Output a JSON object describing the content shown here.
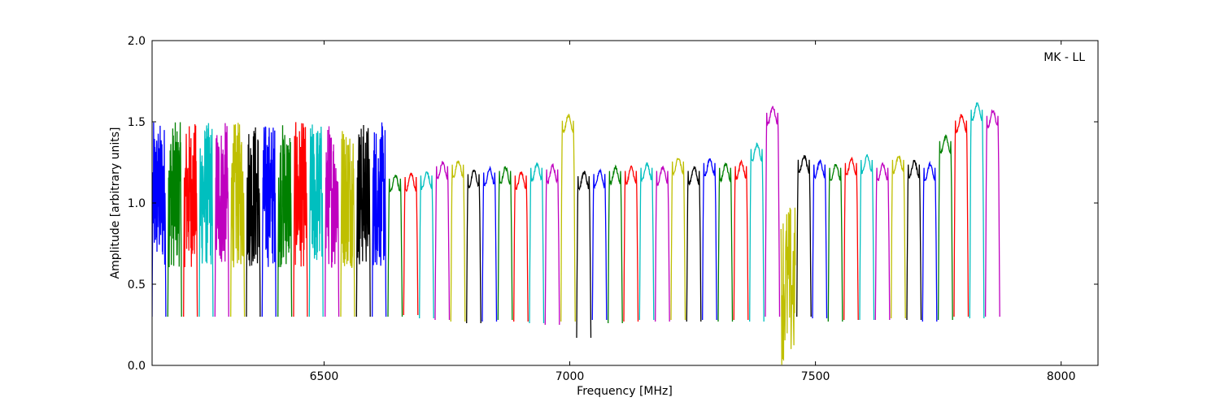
{
  "chart_data": {
    "type": "line",
    "title": "",
    "xlabel": "Frequency [MHz]",
    "ylabel": "Amplitude [arbitrary units]",
    "xlim": [
      6150,
      8075
    ],
    "ylim": [
      0.0,
      2.0
    ],
    "grid": false,
    "annotation": "MK - LL",
    "annotation_placement": "top-right",
    "x_ticks": [
      {
        "value": 6500,
        "label": "6500"
      },
      {
        "value": 7000,
        "label": "7000"
      },
      {
        "value": 7500,
        "label": "7500"
      },
      {
        "value": 8000,
        "label": "8000"
      }
    ],
    "y_ticks": [
      {
        "value": 0.0,
        "label": "0.0"
      },
      {
        "value": 0.5,
        "label": "0.5"
      },
      {
        "value": 1.0,
        "label": "1.0"
      },
      {
        "value": 1.5,
        "label": "1.5"
      },
      {
        "value": 2.0,
        "label": "2.0"
      }
    ],
    "color_cycle": [
      "#0000ff",
      "#008000",
      "#ff0000",
      "#00bfbf",
      "#bf00bf",
      "#bfbf00",
      "#000000"
    ],
    "segment_start_mhz": 6150,
    "segment_width_mhz": 32,
    "noisy_until_mhz": 6630,
    "segments_clean": [
      {
        "min": 0.3,
        "max": 1.18
      },
      {
        "min": 0.31,
        "max": 1.19
      },
      {
        "min": 0.29,
        "max": 1.2
      },
      {
        "min": 0.28,
        "max": 1.26
      },
      {
        "min": 0.27,
        "max": 1.27
      },
      {
        "min": 0.26,
        "max": 1.21
      },
      {
        "min": 0.27,
        "max": 1.22
      },
      {
        "min": 0.28,
        "max": 1.23
      },
      {
        "min": 0.27,
        "max": 1.2
      },
      {
        "min": 0.26,
        "max": 1.25
      },
      {
        "min": 0.25,
        "max": 1.24
      },
      {
        "min": 0.27,
        "max": 1.55
      },
      {
        "min": 0.17,
        "max": 1.2
      },
      {
        "min": 0.28,
        "max": 1.21
      },
      {
        "min": 0.26,
        "max": 1.23
      },
      {
        "min": 0.27,
        "max": 1.23
      },
      {
        "min": 0.28,
        "max": 1.25
      },
      {
        "min": 0.27,
        "max": 1.23
      },
      {
        "min": 0.28,
        "max": 1.29
      },
      {
        "min": 0.27,
        "max": 1.23
      },
      {
        "min": 0.28,
        "max": 1.28
      },
      {
        "min": 0.27,
        "max": 1.25
      },
      {
        "min": 0.28,
        "max": 1.26
      },
      {
        "min": 0.27,
        "max": 1.37
      },
      {
        "min": 0.3,
        "max": 1.6
      },
      {
        "min": 0.0,
        "max": 1.0
      },
      {
        "min": 0.3,
        "max": 1.3
      },
      {
        "min": 0.29,
        "max": 1.27
      },
      {
        "min": 0.27,
        "max": 1.25
      },
      {
        "min": 0.28,
        "max": 1.28
      },
      {
        "min": 0.28,
        "max": 1.3
      },
      {
        "min": 0.28,
        "max": 1.25
      },
      {
        "min": 0.29,
        "max": 1.3
      },
      {
        "min": 0.28,
        "max": 1.27
      },
      {
        "min": 0.27,
        "max": 1.25
      },
      {
        "min": 0.28,
        "max": 1.42
      },
      {
        "min": 0.3,
        "max": 1.55
      },
      {
        "min": 0.29,
        "max": 1.62
      },
      {
        "min": 0.3,
        "max": 1.58
      }
    ]
  }
}
